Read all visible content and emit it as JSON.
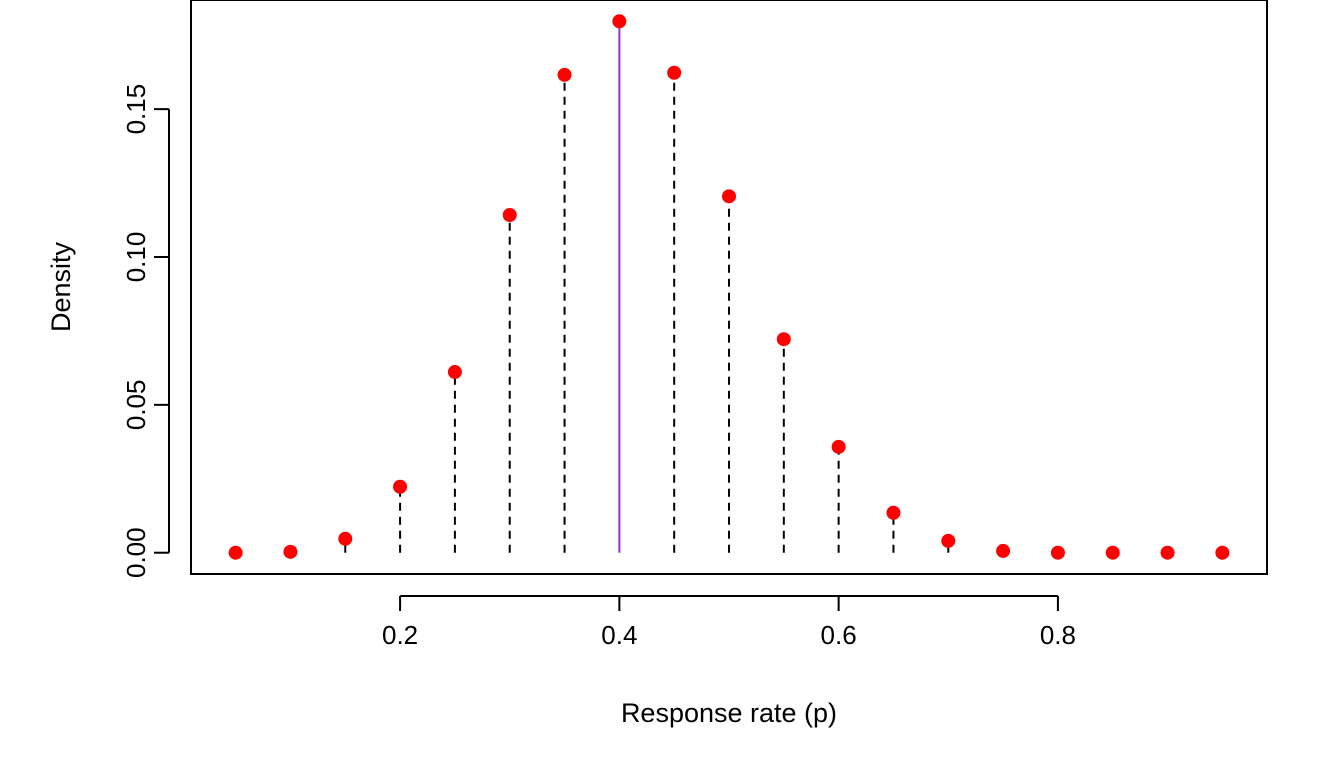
{
  "chart_data": {
    "type": "scatter",
    "title": "",
    "xlabel": "Response rate (p)",
    "ylabel": "Density",
    "xlim": [
      0.0093,
      0.9907
    ],
    "ylim": [
      -0.0072,
      0.1869
    ],
    "x_ticks": [
      0.2,
      0.4,
      0.6,
      0.8
    ],
    "x_tick_labels": [
      "0.2",
      "0.4",
      "0.6",
      "0.8"
    ],
    "y_ticks": [
      0.0,
      0.05,
      0.1,
      0.15
    ],
    "y_tick_labels": [
      "0.00",
      "0.05",
      "0.10",
      "0.15"
    ],
    "grid": false,
    "legend": "none",
    "series": [
      {
        "style": "points with dashed drop lines",
        "x": [
          0.05,
          0.1,
          0.15,
          0.2,
          0.25,
          0.3,
          0.35,
          0.4,
          0.45,
          0.5,
          0.55,
          0.6,
          0.65,
          0.7,
          0.75,
          0.8,
          0.85,
          0.9,
          0.95
        ],
        "y": [
          0.0,
          0.0003,
          0.0047,
          0.0223,
          0.0611,
          0.1142,
          0.1616,
          0.1797,
          0.1623,
          0.1205,
          0.0722,
          0.0358,
          0.0135,
          0.004,
          0.0006,
          0.0,
          0.0,
          0.0,
          0.0
        ]
      }
    ],
    "highlight": {
      "x": 0.4,
      "color": "#9932cc",
      "style": "solid vertical line"
    },
    "colors": {
      "points": "#ff0000",
      "drop_lines": "#000000",
      "highlight_line": "#9932cc",
      "axes": "#000000"
    }
  }
}
